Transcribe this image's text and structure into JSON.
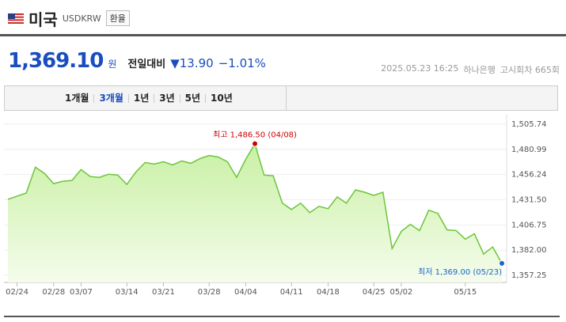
{
  "header": {
    "title": "미국",
    "code": "USDKRW",
    "button": "환율"
  },
  "price": {
    "value": "1,369.10",
    "unit": "원",
    "compare_label": "전일대비",
    "change": "13.90",
    "change_pct": "−1.01%"
  },
  "info": {
    "datetime": "2025.05.23 16:25",
    "bank": "하나은행",
    "round": "고시회차 665회"
  },
  "tabs": {
    "items": [
      "1개월",
      "3개월",
      "1년",
      "3년",
      "5년",
      "10년"
    ],
    "active": 1
  },
  "chart_data": {
    "type": "area",
    "categories": [
      null,
      "02/24",
      null,
      null,
      null,
      "02/28",
      null,
      null,
      "03/07",
      null,
      null,
      null,
      null,
      "03/14",
      null,
      null,
      null,
      "03/21",
      null,
      null,
      null,
      null,
      "03/28",
      null,
      null,
      null,
      "04/04",
      null,
      null,
      null,
      null,
      "04/11",
      null,
      null,
      null,
      "04/18",
      null,
      null,
      null,
      null,
      "04/25",
      null,
      null,
      "05/02",
      null,
      null,
      null,
      null,
      null,
      null,
      "05/15",
      null,
      null,
      null,
      null
    ],
    "series": [
      {
        "name": "USDKRW",
        "color": "#6cc53a",
        "values": [
          1431.95,
          1435.03,
          1438.1,
          1463.47,
          1457.32,
          1447.33,
          1449.63,
          1450.4,
          1461.16,
          1454.24,
          1453.48,
          1456.55,
          1455.78,
          1446.56,
          1458.86,
          1468.08,
          1466.54,
          1468.85,
          1465.77,
          1469.62,
          1467.31,
          1471.92,
          1475.0,
          1473.46,
          1468.85,
          1453.48,
          1471.15,
          1486.5,
          1455.78,
          1455.01,
          1428.11,
          1421.96,
          1428.11,
          1418.89,
          1425.04,
          1422.73,
          1434.26,
          1428.11,
          1441.18,
          1438.87,
          1435.8,
          1438.87,
          1383.53,
          1400.44,
          1407.36,
          1401.21,
          1421.19,
          1418.12,
          1401.98,
          1401.21,
          1392.76,
          1398.14,
          1378.15,
          1385.07,
          1369.0
        ]
      }
    ],
    "ylim": [
      1350.3,
      1511.1
    ],
    "yticks": [
      {
        "value": 1505.74,
        "label": "1,505.74"
      },
      {
        "value": 1480.99,
        "label": "1,480.99"
      },
      {
        "value": 1456.24,
        "label": "1,456.24"
      },
      {
        "value": 1431.5,
        "label": "1,431.50"
      },
      {
        "value": 1406.75,
        "label": "1,406.75"
      },
      {
        "value": 1382.0,
        "label": "1,382.00"
      },
      {
        "value": 1357.25,
        "label": "1,357.25"
      }
    ],
    "grid": true,
    "annotations": [
      {
        "text": "최고 1,486.50 (04/08)",
        "index": 27,
        "color": "#cc0000"
      },
      {
        "text": "최저 1,369.00 (05/23)",
        "index": 54,
        "color": "#1a66cc"
      }
    ]
  }
}
